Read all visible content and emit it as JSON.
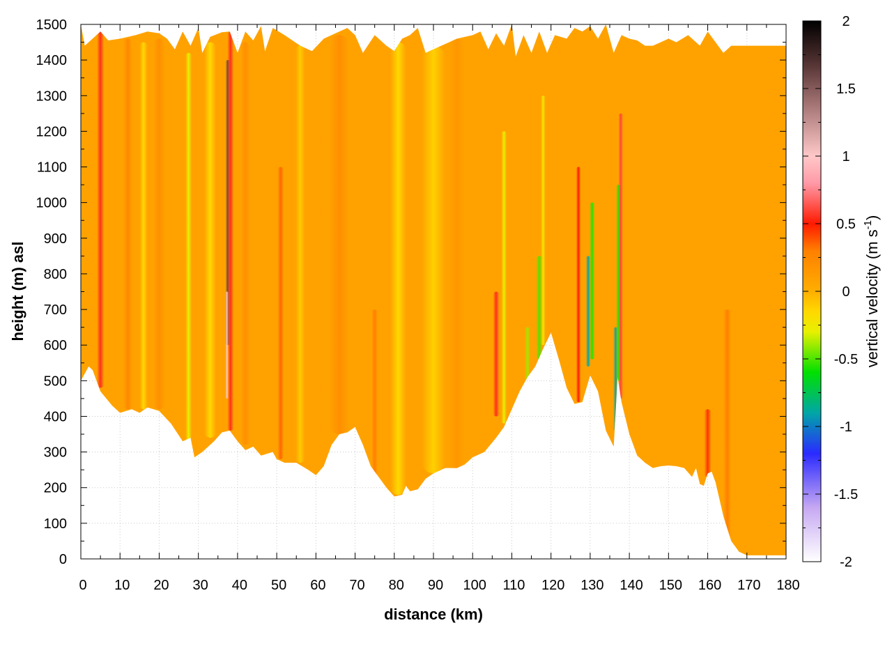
{
  "chart_data": {
    "type": "heatmap",
    "xlabel": "distance (km)",
    "ylabel": "height (m) asl",
    "colorbar_label": "vertical velocity (m s",
    "colorbar_label_sup": "-1",
    "colorbar_label_close": ")",
    "xlim": [
      0,
      180
    ],
    "ylim": [
      0,
      1500
    ],
    "zlim": [
      -2,
      2
    ],
    "x_ticks": [
      "0",
      "10",
      "20",
      "30",
      "40",
      "50",
      "60",
      "70",
      "80",
      "90",
      "100",
      "110",
      "120",
      "130",
      "140",
      "150",
      "160",
      "170",
      "180"
    ],
    "y_ticks": [
      "0",
      "100",
      "200",
      "300",
      "400",
      "500",
      "600",
      "700",
      "800",
      "900",
      "1000",
      "1100",
      "1200",
      "1300",
      "1400",
      "1500"
    ],
    "colorbar_ticks": [
      "-2",
      "-1.5",
      "-1",
      "-0.5",
      "0",
      "0.5",
      "1",
      "1.5",
      "2"
    ],
    "grid": true,
    "colormap": [
      {
        "v": -2.0,
        "color": "#ffffff"
      },
      {
        "v": -1.6,
        "color": "#c6a8f2"
      },
      {
        "v": -1.2,
        "color": "#2a2aff"
      },
      {
        "v": -0.9,
        "color": "#00a6a6"
      },
      {
        "v": -0.6,
        "color": "#00e000"
      },
      {
        "v": -0.3,
        "color": "#e8f000"
      },
      {
        "v": -0.15,
        "color": "#ffd800"
      },
      {
        "v": 0.0,
        "color": "#ffae00"
      },
      {
        "v": 0.3,
        "color": "#ff8000"
      },
      {
        "v": 0.5,
        "color": "#ff1a00"
      },
      {
        "v": 0.8,
        "color": "#ff9aa8"
      },
      {
        "v": 1.0,
        "color": "#ffc8c8"
      },
      {
        "v": 1.4,
        "color": "#a07070"
      },
      {
        "v": 1.7,
        "color": "#503030"
      },
      {
        "v": 2.0,
        "color": "#000000"
      }
    ],
    "lower_boundary": [
      [
        0,
        500
      ],
      [
        2,
        540
      ],
      [
        3,
        530
      ],
      [
        5,
        470
      ],
      [
        8,
        430
      ],
      [
        10,
        410
      ],
      [
        13,
        420
      ],
      [
        15,
        410
      ],
      [
        17,
        425
      ],
      [
        20,
        415
      ],
      [
        23,
        380
      ],
      [
        26,
        330
      ],
      [
        28,
        340
      ],
      [
        29,
        285
      ],
      [
        31,
        300
      ],
      [
        34,
        330
      ],
      [
        36,
        355
      ],
      [
        38,
        360
      ],
      [
        40,
        330
      ],
      [
        42,
        305
      ],
      [
        44,
        315
      ],
      [
        46,
        290
      ],
      [
        49,
        300
      ],
      [
        50,
        280
      ],
      [
        52,
        270
      ],
      [
        55,
        270
      ],
      [
        58,
        250
      ],
      [
        60,
        235
      ],
      [
        62,
        260
      ],
      [
        64,
        320
      ],
      [
        66,
        350
      ],
      [
        68,
        355
      ],
      [
        70,
        370
      ],
      [
        72,
        320
      ],
      [
        74,
        260
      ],
      [
        76,
        230
      ],
      [
        78,
        200
      ],
      [
        80,
        175
      ],
      [
        82,
        180
      ],
      [
        83,
        205
      ],
      [
        84,
        190
      ],
      [
        86,
        195
      ],
      [
        88,
        225
      ],
      [
        90,
        240
      ],
      [
        93,
        255
      ],
      [
        96,
        255
      ],
      [
        98,
        265
      ],
      [
        100,
        285
      ],
      [
        103,
        300
      ],
      [
        106,
        340
      ],
      [
        108,
        370
      ],
      [
        110,
        420
      ],
      [
        112,
        470
      ],
      [
        114,
        510
      ],
      [
        116,
        540
      ],
      [
        118,
        590
      ],
      [
        120,
        635
      ],
      [
        122,
        560
      ],
      [
        124,
        480
      ],
      [
        126,
        435
      ],
      [
        128,
        440
      ],
      [
        130,
        515
      ],
      [
        132,
        470
      ],
      [
        134,
        360
      ],
      [
        136,
        315
      ],
      [
        137,
        510
      ],
      [
        138,
        440
      ],
      [
        140,
        350
      ],
      [
        142,
        290
      ],
      [
        144,
        270
      ],
      [
        146,
        255
      ],
      [
        148,
        260
      ],
      [
        150,
        262
      ],
      [
        152,
        260
      ],
      [
        154,
        255
      ],
      [
        156,
        230
      ],
      [
        157,
        255
      ],
      [
        158,
        210
      ],
      [
        159,
        205
      ],
      [
        160,
        240
      ],
      [
        161,
        245
      ],
      [
        162,
        215
      ],
      [
        164,
        120
      ],
      [
        166,
        50
      ],
      [
        168,
        20
      ],
      [
        170,
        10
      ],
      [
        180,
        10
      ]
    ],
    "upper_boundary": [
      [
        0,
        1500
      ],
      [
        1,
        1440
      ],
      [
        3,
        1460
      ],
      [
        5,
        1480
      ],
      [
        7,
        1455
      ],
      [
        10,
        1460
      ],
      [
        14,
        1470
      ],
      [
        17,
        1480
      ],
      [
        20,
        1475
      ],
      [
        22,
        1460
      ],
      [
        24,
        1430
      ],
      [
        26,
        1480
      ],
      [
        28,
        1440
      ],
      [
        30,
        1490
      ],
      [
        31,
        1420
      ],
      [
        33,
        1465
      ],
      [
        36,
        1478
      ],
      [
        38,
        1480
      ],
      [
        40,
        1420
      ],
      [
        42,
        1480
      ],
      [
        44,
        1455
      ],
      [
        46,
        1495
      ],
      [
        47,
        1425
      ],
      [
        49,
        1490
      ],
      [
        52,
        1470
      ],
      [
        56,
        1440
      ],
      [
        59,
        1425
      ],
      [
        62,
        1460
      ],
      [
        65,
        1475
      ],
      [
        68,
        1490
      ],
      [
        70,
        1470
      ],
      [
        72,
        1420
      ],
      [
        75,
        1470
      ],
      [
        78,
        1440
      ],
      [
        80,
        1425
      ],
      [
        82,
        1460
      ],
      [
        84,
        1470
      ],
      [
        86,
        1490
      ],
      [
        88,
        1420
      ],
      [
        92,
        1440
      ],
      [
        96,
        1460
      ],
      [
        100,
        1470
      ],
      [
        102,
        1480
      ],
      [
        104,
        1430
      ],
      [
        106,
        1475
      ],
      [
        108,
        1440
      ],
      [
        110,
        1500
      ],
      [
        111,
        1410
      ],
      [
        113,
        1470
      ],
      [
        115,
        1420
      ],
      [
        117,
        1480
      ],
      [
        119,
        1420
      ],
      [
        121,
        1470
      ],
      [
        124,
        1460
      ],
      [
        126,
        1490
      ],
      [
        128,
        1480
      ],
      [
        130,
        1495
      ],
      [
        132,
        1460
      ],
      [
        134,
        1500
      ],
      [
        136,
        1420
      ],
      [
        138,
        1470
      ],
      [
        140,
        1460
      ],
      [
        142,
        1455
      ],
      [
        144,
        1440
      ],
      [
        146,
        1440
      ],
      [
        148,
        1450
      ],
      [
        150,
        1460
      ],
      [
        152,
        1450
      ],
      [
        155,
        1470
      ],
      [
        158,
        1440
      ],
      [
        160,
        1480
      ],
      [
        162,
        1450
      ],
      [
        164,
        1420
      ],
      [
        166,
        1440
      ],
      [
        180,
        1440
      ]
    ],
    "features": [
      {
        "x": 5,
        "width": 0.9,
        "value": 0.55,
        "zmin": 480,
        "zmax": 1480
      },
      {
        "x": 12,
        "width": 1.2,
        "value": 0.25,
        "zmin": 420,
        "zmax": 1460
      },
      {
        "x": 16,
        "width": 1.0,
        "value": -0.15,
        "zmin": 420,
        "zmax": 1450
      },
      {
        "x": 20,
        "width": 1.5,
        "value": 0.2,
        "zmin": 420,
        "zmax": 1460
      },
      {
        "x": 27.5,
        "width": 0.8,
        "value": -0.3,
        "zmin": 320,
        "zmax": 1420
      },
      {
        "x": 33,
        "width": 1.5,
        "value": -0.15,
        "zmin": 340,
        "zmax": 1450
      },
      {
        "x": 37.5,
        "width": 0.6,
        "value": 1.6,
        "zmin": 600,
        "zmax": 1400
      },
      {
        "x": 38.2,
        "width": 0.8,
        "value": 0.55,
        "zmin": 360,
        "zmax": 1480
      },
      {
        "x": 37.3,
        "width": 0.4,
        "value": 1.0,
        "zmin": 450,
        "zmax": 750
      },
      {
        "x": 42,
        "width": 1.2,
        "value": 0.2,
        "zmin": 320,
        "zmax": 1450
      },
      {
        "x": 51,
        "width": 0.8,
        "value": 0.35,
        "zmin": 280,
        "zmax": 1100
      },
      {
        "x": 56,
        "width": 1.2,
        "value": -0.1,
        "zmin": 270,
        "zmax": 1440
      },
      {
        "x": 66,
        "width": 2.5,
        "value": 0.2,
        "zmin": 350,
        "zmax": 1470
      },
      {
        "x": 75,
        "width": 0.8,
        "value": 0.3,
        "zmin": 230,
        "zmax": 700
      },
      {
        "x": 81,
        "width": 2.0,
        "value": -0.15,
        "zmin": 180,
        "zmax": 1450
      },
      {
        "x": 90,
        "width": 3.0,
        "value": -0.12,
        "zmin": 240,
        "zmax": 1440
      },
      {
        "x": 96,
        "width": 2.0,
        "value": 0.15,
        "zmin": 250,
        "zmax": 1460
      },
      {
        "x": 106,
        "width": 0.8,
        "value": 0.55,
        "zmin": 400,
        "zmax": 750
      },
      {
        "x": 108,
        "width": 0.7,
        "value": -0.3,
        "zmin": 380,
        "zmax": 1200
      },
      {
        "x": 114,
        "width": 0.7,
        "value": -0.4,
        "zmin": 500,
        "zmax": 650
      },
      {
        "x": 117,
        "width": 0.8,
        "value": -0.5,
        "zmin": 560,
        "zmax": 850
      },
      {
        "x": 118,
        "width": 0.6,
        "value": -0.25,
        "zmin": 600,
        "zmax": 1300
      },
      {
        "x": 127,
        "width": 0.6,
        "value": 0.5,
        "zmin": 440,
        "zmax": 1100
      },
      {
        "x": 129.5,
        "width": 0.6,
        "value": -0.9,
        "zmin": 540,
        "zmax": 850
      },
      {
        "x": 130.5,
        "width": 0.7,
        "value": -0.55,
        "zmin": 560,
        "zmax": 1000
      },
      {
        "x": 136.5,
        "width": 0.6,
        "value": -0.9,
        "zmin": 360,
        "zmax": 650
      },
      {
        "x": 137.2,
        "width": 0.6,
        "value": -0.55,
        "zmin": 500,
        "zmax": 1050
      },
      {
        "x": 137.8,
        "width": 0.6,
        "value": 0.6,
        "zmin": 450,
        "zmax": 1250
      },
      {
        "x": 160,
        "width": 0.9,
        "value": 0.45,
        "zmin": 230,
        "zmax": 420
      },
      {
        "x": 165,
        "width": 1.0,
        "value": 0.3,
        "zmin": 60,
        "zmax": 700
      }
    ]
  }
}
